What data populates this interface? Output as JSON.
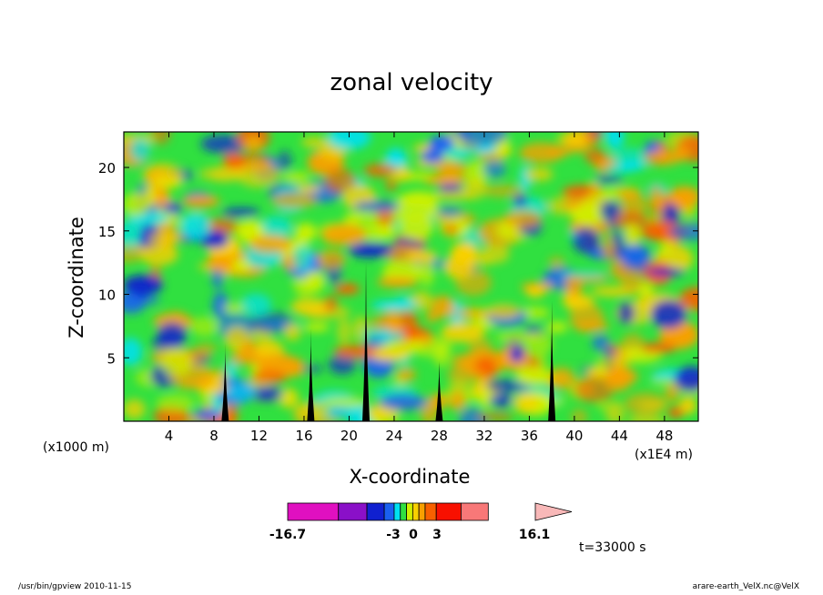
{
  "chart_data": {
    "type": "heatmap",
    "title": "zonal velocity",
    "xlabel": "X-coordinate",
    "ylabel": "Z-coordinate",
    "x_unit_label": "(x1000 m)",
    "x_scale_label": "(x1E4 m)",
    "x_ticks": [
      4,
      8,
      12,
      16,
      20,
      24,
      28,
      32,
      36,
      40,
      44,
      48
    ],
    "y_ticks": [
      5,
      10,
      15,
      20
    ],
    "xlim": [
      0,
      51
    ],
    "ylim": [
      0,
      22.8
    ],
    "colorbar": {
      "min": -16.7,
      "max": 16.1,
      "labels": [
        "-16.7",
        "-3",
        "0",
        "3",
        "16.1"
      ],
      "colors": [
        "#e010c0",
        "#8a10c8",
        "#1020d0",
        "#1a60f0",
        "#00e0f0",
        "#30e040",
        "#d0f000",
        "#f8d000",
        "#f8a000",
        "#f86000",
        "#f81000",
        "#f87878",
        "#f8b8b8"
      ]
    },
    "time_label": "t=33000 s",
    "mountains": [
      {
        "x": 9,
        "height": 6.2
      },
      {
        "x": 16.6,
        "height": 7.3
      },
      {
        "x": 21.5,
        "height": 12.5
      },
      {
        "x": 28,
        "height": 5
      },
      {
        "x": 38,
        "height": 9.5
      }
    ]
  },
  "footer": {
    "left": "/usr/bin/gpview  2010-11-15",
    "right": "arare-earth_VelX.nc@VelX"
  }
}
